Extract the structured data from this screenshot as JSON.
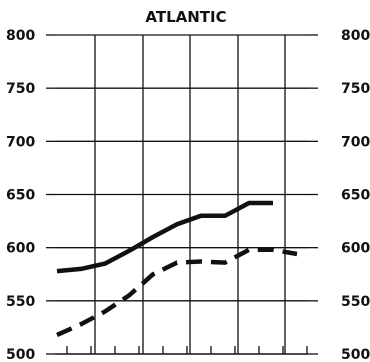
{
  "chart_data": {
    "type": "line",
    "title": "ATLANTIC",
    "ylim": [
      500,
      800
    ],
    "yticks": [
      "500",
      "550",
      "600",
      "650",
      "700",
      "750",
      "800"
    ],
    "grid": true,
    "x": [
      0,
      1,
      2,
      3,
      4,
      5,
      6,
      7,
      8,
      9,
      10
    ],
    "series": [
      {
        "style": "solid",
        "values": [
          578,
          580,
          585,
          597,
          610,
          622,
          630,
          630,
          642,
          642,
          null
        ]
      },
      {
        "style": "dashed",
        "values": [
          518,
          528,
          540,
          555,
          575,
          586,
          587,
          586,
          598,
          598,
          594
        ]
      }
    ]
  }
}
